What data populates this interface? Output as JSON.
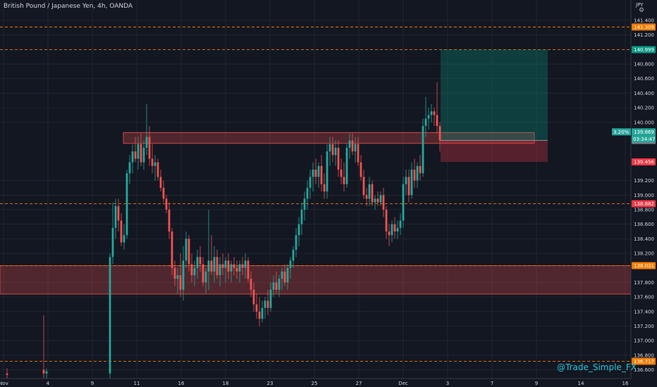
{
  "title": "British Pound / Japanese Yen, 4h, OANDA",
  "currency_label": "JPY",
  "watermark": "@Trade_Simple_FX",
  "colors": {
    "background": "#131722",
    "grid": "#2a2e39",
    "up": "#26a69a",
    "down": "#ef5350",
    "level_dash": "#f57c00",
    "target": "#089981",
    "stop": "#f23645",
    "resistance_zone": "#ef5350"
  },
  "chart_data": {
    "type": "candlestick",
    "symbol": "GBPJPY",
    "timeframe": "4h",
    "ylim": [
      136.48,
      141.68
    ],
    "y_ticks": [
      "141.400",
      "141.200",
      "140.800",
      "140.600",
      "140.400",
      "140.200",
      "140.000",
      "139.200",
      "139.000",
      "138.800",
      "138.600",
      "138.400",
      "138.200",
      "137.800",
      "137.600",
      "137.400",
      "137.200",
      "137.000",
      "136.800",
      "136.600"
    ],
    "x_ticks": [
      "Nov",
      "4",
      "9",
      "11",
      "16",
      "18",
      "23",
      "25",
      "27",
      "Dec",
      "3",
      "7",
      "9",
      "14",
      "16"
    ],
    "horizontal_levels": [
      {
        "price": 141.309,
        "label": "141.309",
        "color": "#f57c00"
      },
      {
        "price": 140.999,
        "label": "140.999",
        "color": "#f57c00"
      },
      {
        "price": 138.882,
        "label": "138.882",
        "color": "#f57c00"
      },
      {
        "price": 138.031,
        "label": "138.031",
        "color": "#f57c00"
      },
      {
        "price": 136.717,
        "label": "136.717",
        "color": "#f57c00"
      }
    ],
    "price_tags": [
      {
        "price": 141.309,
        "label": "141.309",
        "color": "#f57c00"
      },
      {
        "price": 140.999,
        "label": "140.999",
        "color": "#089981"
      },
      {
        "price": 139.869,
        "label": "139.869",
        "color": "#26a69a"
      },
      {
        "price": 139.751,
        "label": "139.751",
        "color": "#787b86"
      },
      {
        "price": 139.456,
        "label": "139.456",
        "color": "#f23645"
      },
      {
        "price": 138.882,
        "label": "138.882",
        "color": "#f23645"
      },
      {
        "price": 138.031,
        "label": "138.031",
        "color": "#f57c00"
      },
      {
        "price": 136.717,
        "label": "136.717",
        "color": "#f57c00"
      }
    ],
    "current_price_extras": {
      "change": "3.20%",
      "countdown": "03:34:47"
    },
    "zones": [
      {
        "name": "resistance",
        "x_start": 175,
        "x_end": 758,
        "top": 139.86,
        "bottom": 139.71
      },
      {
        "name": "support",
        "x_start": 0,
        "x_end": 895,
        "top": 138.03,
        "bottom": 137.64
      }
    ],
    "position": {
      "x_start": 625,
      "x_end": 777,
      "entry": 139.751,
      "target": 140.999,
      "stop": 139.456
    },
    "candles": [
      {
        "x": 10,
        "o": 136.55,
        "h": 136.62,
        "l": 136.48,
        "c": 136.53
      },
      {
        "x": 62,
        "o": 136.6,
        "h": 137.35,
        "l": 136.48,
        "c": 136.55
      },
      {
        "x": 66,
        "o": 136.55,
        "h": 136.62,
        "l": 136.48,
        "c": 136.58
      },
      {
        "x": 156,
        "o": 136.55,
        "h": 138.2,
        "l": 136.48,
        "c": 138.15
      },
      {
        "x": 160,
        "o": 138.15,
        "h": 138.9,
        "l": 138.05,
        "c": 138.55
      },
      {
        "x": 164,
        "o": 138.55,
        "h": 138.95,
        "l": 138.4,
        "c": 138.85
      },
      {
        "x": 168,
        "o": 138.85,
        "h": 138.95,
        "l": 138.5,
        "c": 138.65
      },
      {
        "x": 172,
        "o": 138.65,
        "h": 138.75,
        "l": 138.3,
        "c": 138.35
      },
      {
        "x": 176,
        "o": 138.35,
        "h": 138.6,
        "l": 138.25,
        "c": 138.45
      },
      {
        "x": 180,
        "o": 138.45,
        "h": 139.35,
        "l": 138.4,
        "c": 139.3
      },
      {
        "x": 184,
        "o": 139.3,
        "h": 139.55,
        "l": 139.15,
        "c": 139.45
      },
      {
        "x": 188,
        "o": 139.45,
        "h": 139.7,
        "l": 139.3,
        "c": 139.6
      },
      {
        "x": 192,
        "o": 139.6,
        "h": 139.8,
        "l": 139.45,
        "c": 139.5
      },
      {
        "x": 196,
        "o": 139.5,
        "h": 139.8,
        "l": 139.35,
        "c": 139.7
      },
      {
        "x": 200,
        "o": 139.7,
        "h": 139.85,
        "l": 139.4,
        "c": 139.45
      },
      {
        "x": 204,
        "o": 139.45,
        "h": 139.75,
        "l": 139.35,
        "c": 139.65
      },
      {
        "x": 208,
        "o": 139.65,
        "h": 140.25,
        "l": 139.55,
        "c": 139.8
      },
      {
        "x": 212,
        "o": 139.8,
        "h": 139.95,
        "l": 139.4,
        "c": 139.5
      },
      {
        "x": 216,
        "o": 139.5,
        "h": 139.7,
        "l": 139.3,
        "c": 139.4
      },
      {
        "x": 220,
        "o": 139.4,
        "h": 139.55,
        "l": 139.2,
        "c": 139.45
      },
      {
        "x": 224,
        "o": 139.45,
        "h": 139.5,
        "l": 139.2,
        "c": 139.25
      },
      {
        "x": 228,
        "o": 139.25,
        "h": 139.35,
        "l": 139.05,
        "c": 139.1
      },
      {
        "x": 232,
        "o": 139.1,
        "h": 139.2,
        "l": 138.9,
        "c": 138.95
      },
      {
        "x": 236,
        "o": 138.95,
        "h": 139.0,
        "l": 138.75,
        "c": 138.8
      },
      {
        "x": 240,
        "o": 138.8,
        "h": 138.9,
        "l": 138.4,
        "c": 138.5
      },
      {
        "x": 244,
        "o": 138.5,
        "h": 138.55,
        "l": 137.9,
        "c": 138.0
      },
      {
        "x": 248,
        "o": 138.0,
        "h": 138.1,
        "l": 137.75,
        "c": 137.85
      },
      {
        "x": 252,
        "o": 137.85,
        "h": 138.0,
        "l": 137.65,
        "c": 137.9
      },
      {
        "x": 256,
        "o": 137.9,
        "h": 138.2,
        "l": 137.6,
        "c": 137.7
      },
      {
        "x": 260,
        "o": 137.7,
        "h": 138.3,
        "l": 137.55,
        "c": 138.1
      },
      {
        "x": 264,
        "o": 138.1,
        "h": 138.5,
        "l": 138.0,
        "c": 138.4
      },
      {
        "x": 268,
        "o": 138.4,
        "h": 138.45,
        "l": 137.95,
        "c": 138.05
      },
      {
        "x": 272,
        "o": 138.05,
        "h": 138.2,
        "l": 137.8,
        "c": 137.9
      },
      {
        "x": 276,
        "o": 137.9,
        "h": 138.1,
        "l": 137.75,
        "c": 138.0
      },
      {
        "x": 280,
        "o": 138.0,
        "h": 138.25,
        "l": 137.85,
        "c": 138.15
      },
      {
        "x": 284,
        "o": 138.15,
        "h": 138.3,
        "l": 137.95,
        "c": 138.05
      },
      {
        "x": 288,
        "o": 138.05,
        "h": 138.15,
        "l": 137.75,
        "c": 137.8
      },
      {
        "x": 292,
        "o": 137.8,
        "h": 138.0,
        "l": 137.65,
        "c": 137.95
      },
      {
        "x": 296,
        "o": 137.95,
        "h": 138.8,
        "l": 137.7,
        "c": 138.1
      },
      {
        "x": 300,
        "o": 138.1,
        "h": 138.45,
        "l": 137.9,
        "c": 137.95
      },
      {
        "x": 304,
        "o": 137.95,
        "h": 138.3,
        "l": 137.8,
        "c": 138.15
      },
      {
        "x": 308,
        "o": 138.15,
        "h": 138.25,
        "l": 137.85,
        "c": 137.9
      },
      {
        "x": 312,
        "o": 137.9,
        "h": 138.15,
        "l": 137.75,
        "c": 138.05
      },
      {
        "x": 316,
        "o": 138.05,
        "h": 138.2,
        "l": 137.9,
        "c": 138.0
      },
      {
        "x": 320,
        "o": 138.0,
        "h": 138.15,
        "l": 137.8,
        "c": 138.1
      },
      {
        "x": 324,
        "o": 138.1,
        "h": 138.2,
        "l": 137.85,
        "c": 137.95
      },
      {
        "x": 328,
        "o": 137.95,
        "h": 138.1,
        "l": 137.8,
        "c": 138.05
      },
      {
        "x": 332,
        "o": 138.05,
        "h": 138.15,
        "l": 137.9,
        "c": 138.0
      },
      {
        "x": 336,
        "o": 138.0,
        "h": 138.1,
        "l": 137.85,
        "c": 137.95
      },
      {
        "x": 340,
        "o": 137.95,
        "h": 138.1,
        "l": 137.8,
        "c": 138.05
      },
      {
        "x": 344,
        "o": 138.05,
        "h": 138.15,
        "l": 137.9,
        "c": 138.0
      },
      {
        "x": 348,
        "o": 138.0,
        "h": 138.2,
        "l": 137.85,
        "c": 138.1
      },
      {
        "x": 352,
        "o": 138.1,
        "h": 138.15,
        "l": 137.8,
        "c": 137.85
      },
      {
        "x": 356,
        "o": 137.85,
        "h": 137.95,
        "l": 137.6,
        "c": 137.7
      },
      {
        "x": 360,
        "o": 137.7,
        "h": 137.8,
        "l": 137.4,
        "c": 137.5
      },
      {
        "x": 364,
        "o": 137.5,
        "h": 137.65,
        "l": 137.3,
        "c": 137.4
      },
      {
        "x": 368,
        "o": 137.4,
        "h": 137.6,
        "l": 137.2,
        "c": 137.3
      },
      {
        "x": 372,
        "o": 137.3,
        "h": 137.55,
        "l": 137.25,
        "c": 137.45
      },
      {
        "x": 376,
        "o": 137.45,
        "h": 137.6,
        "l": 137.3,
        "c": 137.55
      },
      {
        "x": 380,
        "o": 137.55,
        "h": 137.7,
        "l": 137.35,
        "c": 137.45
      },
      {
        "x": 384,
        "o": 137.45,
        "h": 137.8,
        "l": 137.4,
        "c": 137.7
      },
      {
        "x": 388,
        "o": 137.7,
        "h": 137.9,
        "l": 137.6,
        "c": 137.8
      },
      {
        "x": 392,
        "o": 137.8,
        "h": 137.95,
        "l": 137.65,
        "c": 137.7
      },
      {
        "x": 396,
        "o": 137.7,
        "h": 137.9,
        "l": 137.6,
        "c": 137.85
      },
      {
        "x": 400,
        "o": 137.85,
        "h": 138.0,
        "l": 137.7,
        "c": 137.95
      },
      {
        "x": 404,
        "o": 137.95,
        "h": 138.05,
        "l": 137.75,
        "c": 137.8
      },
      {
        "x": 408,
        "o": 137.8,
        "h": 138.05,
        "l": 137.7,
        "c": 138.0
      },
      {
        "x": 412,
        "o": 138.0,
        "h": 138.15,
        "l": 137.85,
        "c": 138.1
      },
      {
        "x": 416,
        "o": 138.1,
        "h": 138.3,
        "l": 138.0,
        "c": 138.25
      },
      {
        "x": 420,
        "o": 138.25,
        "h": 138.55,
        "l": 138.15,
        "c": 138.45
      },
      {
        "x": 424,
        "o": 138.45,
        "h": 138.7,
        "l": 138.3,
        "c": 138.6
      },
      {
        "x": 428,
        "o": 138.6,
        "h": 138.9,
        "l": 138.45,
        "c": 138.8
      },
      {
        "x": 432,
        "o": 138.8,
        "h": 139.05,
        "l": 138.65,
        "c": 138.95
      },
      {
        "x": 436,
        "o": 138.95,
        "h": 139.2,
        "l": 138.8,
        "c": 139.1
      },
      {
        "x": 440,
        "o": 139.1,
        "h": 139.35,
        "l": 138.95,
        "c": 139.25
      },
      {
        "x": 444,
        "o": 139.25,
        "h": 139.45,
        "l": 139.05,
        "c": 139.35
      },
      {
        "x": 448,
        "o": 139.35,
        "h": 139.5,
        "l": 139.15,
        "c": 139.25
      },
      {
        "x": 452,
        "o": 139.25,
        "h": 139.45,
        "l": 139.1,
        "c": 139.4
      },
      {
        "x": 456,
        "o": 139.4,
        "h": 139.55,
        "l": 139.05,
        "c": 139.15
      },
      {
        "x": 460,
        "o": 139.15,
        "h": 139.3,
        "l": 138.95,
        "c": 139.05
      },
      {
        "x": 464,
        "o": 139.05,
        "h": 139.7,
        "l": 138.95,
        "c": 139.6
      },
      {
        "x": 468,
        "o": 139.6,
        "h": 139.8,
        "l": 139.4,
        "c": 139.7
      },
      {
        "x": 472,
        "o": 139.7,
        "h": 139.8,
        "l": 139.45,
        "c": 139.55
      },
      {
        "x": 476,
        "o": 139.55,
        "h": 139.75,
        "l": 139.4,
        "c": 139.65
      },
      {
        "x": 480,
        "o": 139.65,
        "h": 139.75,
        "l": 139.25,
        "c": 139.35
      },
      {
        "x": 484,
        "o": 139.35,
        "h": 139.5,
        "l": 139.15,
        "c": 139.25
      },
      {
        "x": 488,
        "o": 139.25,
        "h": 139.45,
        "l": 139.05,
        "c": 139.15
      },
      {
        "x": 492,
        "o": 139.15,
        "h": 139.7,
        "l": 139.1,
        "c": 139.65
      },
      {
        "x": 496,
        "o": 139.65,
        "h": 139.85,
        "l": 139.5,
        "c": 139.75
      },
      {
        "x": 500,
        "o": 139.75,
        "h": 139.85,
        "l": 139.55,
        "c": 139.6
      },
      {
        "x": 504,
        "o": 139.6,
        "h": 139.8,
        "l": 139.45,
        "c": 139.7
      },
      {
        "x": 508,
        "o": 139.7,
        "h": 139.8,
        "l": 139.4,
        "c": 139.45
      },
      {
        "x": 512,
        "o": 139.45,
        "h": 139.55,
        "l": 139.2,
        "c": 139.25
      },
      {
        "x": 516,
        "o": 139.25,
        "h": 139.35,
        "l": 138.95,
        "c": 139.0
      },
      {
        "x": 520,
        "o": 139.0,
        "h": 139.1,
        "l": 138.85,
        "c": 138.95
      },
      {
        "x": 524,
        "o": 138.95,
        "h": 139.25,
        "l": 138.85,
        "c": 139.15
      },
      {
        "x": 528,
        "o": 139.15,
        "h": 139.2,
        "l": 138.85,
        "c": 138.9
      },
      {
        "x": 532,
        "o": 138.9,
        "h": 139.0,
        "l": 138.8,
        "c": 138.95
      },
      {
        "x": 536,
        "o": 138.95,
        "h": 139.05,
        "l": 138.85,
        "c": 138.9
      },
      {
        "x": 540,
        "o": 138.9,
        "h": 139.05,
        "l": 138.85,
        "c": 139.0
      },
      {
        "x": 544,
        "o": 139.0,
        "h": 139.1,
        "l": 138.7,
        "c": 138.8
      },
      {
        "x": 548,
        "o": 138.8,
        "h": 138.85,
        "l": 138.4,
        "c": 138.5
      },
      {
        "x": 552,
        "o": 138.5,
        "h": 138.6,
        "l": 138.3,
        "c": 138.45
      },
      {
        "x": 556,
        "o": 138.45,
        "h": 138.65,
        "l": 138.35,
        "c": 138.6
      },
      {
        "x": 560,
        "o": 138.6,
        "h": 138.7,
        "l": 138.4,
        "c": 138.5
      },
      {
        "x": 564,
        "o": 138.5,
        "h": 138.65,
        "l": 138.4,
        "c": 138.55
      },
      {
        "x": 568,
        "o": 138.55,
        "h": 138.75,
        "l": 138.45,
        "c": 138.65
      },
      {
        "x": 572,
        "o": 138.65,
        "h": 139.25,
        "l": 138.55,
        "c": 139.15
      },
      {
        "x": 576,
        "o": 139.15,
        "h": 139.35,
        "l": 139.0,
        "c": 139.25
      },
      {
        "x": 580,
        "o": 139.25,
        "h": 139.35,
        "l": 138.9,
        "c": 139.0
      },
      {
        "x": 584,
        "o": 139.0,
        "h": 139.45,
        "l": 138.95,
        "c": 139.35
      },
      {
        "x": 588,
        "o": 139.35,
        "h": 139.5,
        "l": 139.1,
        "c": 139.2
      },
      {
        "x": 592,
        "o": 139.2,
        "h": 139.45,
        "l": 139.1,
        "c": 139.4
      },
      {
        "x": 596,
        "o": 139.4,
        "h": 139.55,
        "l": 139.2,
        "c": 139.3
      },
      {
        "x": 600,
        "o": 139.3,
        "h": 140.05,
        "l": 139.25,
        "c": 139.95
      },
      {
        "x": 604,
        "o": 139.95,
        "h": 140.35,
        "l": 139.8,
        "c": 140.05
      },
      {
        "x": 608,
        "o": 140.05,
        "h": 140.2,
        "l": 139.9,
        "c": 140.1
      },
      {
        "x": 612,
        "o": 140.1,
        "h": 140.25,
        "l": 140.0,
        "c": 140.15
      },
      {
        "x": 616,
        "o": 140.15,
        "h": 140.2,
        "l": 139.95,
        "c": 140.1
      },
      {
        "x": 620,
        "o": 140.1,
        "h": 140.55,
        "l": 139.85,
        "c": 139.95
      },
      {
        "x": 624,
        "o": 139.95,
        "h": 140.0,
        "l": 139.6,
        "c": 139.75
      }
    ]
  }
}
